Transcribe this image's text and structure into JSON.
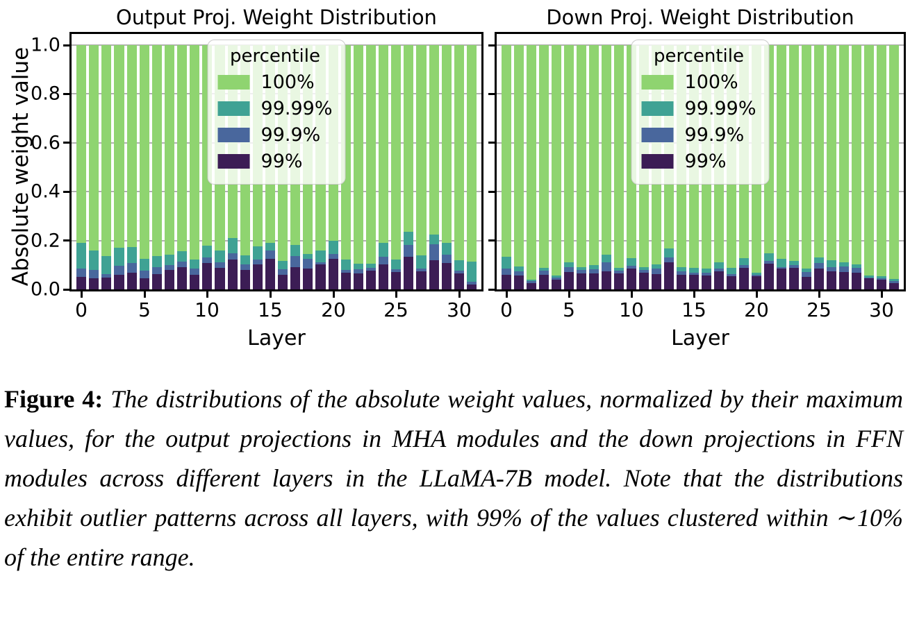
{
  "figure_caption": {
    "label": "Figure 4:",
    "text": "The distributions of the absolute weight values, normalized by their maximum values, for the output projections in MHA modules and the down projections in FFN modules across different layers in the LLaMA-7B model. Note that the distributions exhibit outlier patterns across all layers, with 99% of the values clustered within ∼10% of the entire range."
  },
  "colors": {
    "p100": "#8fd470",
    "p99_99": "#3fa294",
    "p99_9": "#49679d",
    "p99": "#3c1d55",
    "grid": "#b0b0b0",
    "spine": "#000000"
  },
  "legend": {
    "title": "percentile",
    "entries": [
      {
        "label": "100%",
        "color_key": "p100"
      },
      {
        "label": "99.99%",
        "color_key": "p99_99"
      },
      {
        "label": "99.9%",
        "color_key": "p99_9"
      },
      {
        "label": "99%",
        "color_key": "p99"
      }
    ]
  },
  "shared_axes": {
    "ylabel": "Absolute weight value",
    "xlabel": "Layer",
    "yticks": [
      1.0,
      0.8,
      0.6,
      0.4,
      0.2,
      0.0
    ],
    "xticks": [
      0,
      5,
      10,
      15,
      20,
      25,
      30
    ],
    "ylim": [
      0,
      1.045
    ],
    "grid": true
  },
  "chart_data": [
    {
      "type": "bar",
      "variant": "overlaid-percentile-bars",
      "title": "Output Proj. Weight Distribution",
      "xlabel": "Layer",
      "ylabel": "Absolute weight value",
      "x": [
        0,
        1,
        2,
        3,
        4,
        5,
        6,
        7,
        8,
        9,
        10,
        11,
        12,
        13,
        14,
        15,
        16,
        17,
        18,
        19,
        20,
        21,
        22,
        23,
        24,
        25,
        26,
        27,
        28,
        29,
        30,
        31
      ],
      "series": [
        {
          "name": "100%",
          "values": [
            1.0,
            1.0,
            1.0,
            1.0,
            1.0,
            1.0,
            1.0,
            1.0,
            1.0,
            1.0,
            1.0,
            1.0,
            1.0,
            1.0,
            1.0,
            1.0,
            1.0,
            1.0,
            1.0,
            1.0,
            1.0,
            1.0,
            1.0,
            1.0,
            1.0,
            1.0,
            1.0,
            1.0,
            1.0,
            1.0,
            1.0,
            1.0
          ]
        },
        {
          "name": "99.99%",
          "values": [
            0.19,
            0.16,
            0.135,
            0.17,
            0.172,
            0.125,
            0.135,
            0.143,
            0.157,
            0.122,
            0.18,
            0.16,
            0.21,
            0.14,
            0.175,
            0.19,
            0.117,
            0.183,
            0.146,
            0.16,
            0.199,
            0.121,
            0.104,
            0.106,
            0.19,
            0.121,
            0.235,
            0.138,
            0.225,
            0.191,
            0.118,
            0.114
          ]
        },
        {
          "name": "99.9%",
          "values": [
            0.085,
            0.08,
            0.062,
            0.097,
            0.107,
            0.077,
            0.092,
            0.1,
            0.115,
            0.085,
            0.13,
            0.112,
            0.147,
            0.102,
            0.123,
            0.16,
            0.083,
            0.135,
            0.124,
            0.111,
            0.145,
            0.081,
            0.083,
            0.088,
            0.134,
            0.083,
            0.181,
            0.085,
            0.186,
            0.141,
            0.078,
            0.03
          ]
        },
        {
          "name": "99%",
          "values": [
            0.05,
            0.045,
            0.048,
            0.061,
            0.068,
            0.045,
            0.063,
            0.08,
            0.09,
            0.06,
            0.107,
            0.088,
            0.122,
            0.081,
            0.103,
            0.125,
            0.06,
            0.092,
            0.085,
            0.101,
            0.126,
            0.069,
            0.064,
            0.076,
            0.102,
            0.071,
            0.134,
            0.074,
            0.119,
            0.108,
            0.066,
            0.02
          ]
        }
      ]
    },
    {
      "type": "bar",
      "variant": "overlaid-percentile-bars",
      "title": "Down Proj. Weight Distribution",
      "xlabel": "Layer",
      "ylabel": "",
      "x": [
        0,
        1,
        2,
        3,
        4,
        5,
        6,
        7,
        8,
        9,
        10,
        11,
        12,
        13,
        14,
        15,
        16,
        17,
        18,
        19,
        20,
        21,
        22,
        23,
        24,
        25,
        26,
        27,
        28,
        29,
        30,
        31
      ],
      "series": [
        {
          "name": "100%",
          "values": [
            1.0,
            1.0,
            1.0,
            1.0,
            1.0,
            1.0,
            1.0,
            1.0,
            1.0,
            1.0,
            1.0,
            1.0,
            1.0,
            1.0,
            1.0,
            1.0,
            1.0,
            1.0,
            1.0,
            1.0,
            1.0,
            1.0,
            1.0,
            1.0,
            1.0,
            1.0,
            1.0,
            1.0,
            1.0,
            1.0,
            1.0,
            1.0
          ]
        },
        {
          "name": "99.99%",
          "values": [
            0.133,
            0.095,
            0.041,
            0.088,
            0.056,
            0.112,
            0.09,
            0.1,
            0.143,
            0.088,
            0.129,
            0.09,
            0.102,
            0.167,
            0.09,
            0.089,
            0.085,
            0.111,
            0.089,
            0.128,
            0.068,
            0.149,
            0.126,
            0.116,
            0.084,
            0.131,
            0.12,
            0.111,
            0.101,
            0.056,
            0.053,
            0.044
          ]
        },
        {
          "name": "99.9%",
          "values": [
            0.086,
            0.073,
            0.033,
            0.076,
            0.047,
            0.09,
            0.079,
            0.082,
            0.11,
            0.076,
            0.098,
            0.081,
            0.086,
            0.131,
            0.075,
            0.068,
            0.068,
            0.086,
            0.063,
            0.099,
            0.06,
            0.116,
            0.091,
            0.099,
            0.071,
            0.108,
            0.091,
            0.094,
            0.089,
            0.048,
            0.046,
            0.035
          ]
        },
        {
          "name": "99%",
          "values": [
            0.061,
            0.057,
            0.026,
            0.06,
            0.039,
            0.071,
            0.066,
            0.065,
            0.073,
            0.066,
            0.086,
            0.068,
            0.062,
            0.112,
            0.061,
            0.061,
            0.056,
            0.075,
            0.055,
            0.089,
            0.053,
            0.104,
            0.085,
            0.088,
            0.052,
            0.086,
            0.075,
            0.072,
            0.068,
            0.045,
            0.041,
            0.026
          ]
        }
      ]
    }
  ]
}
